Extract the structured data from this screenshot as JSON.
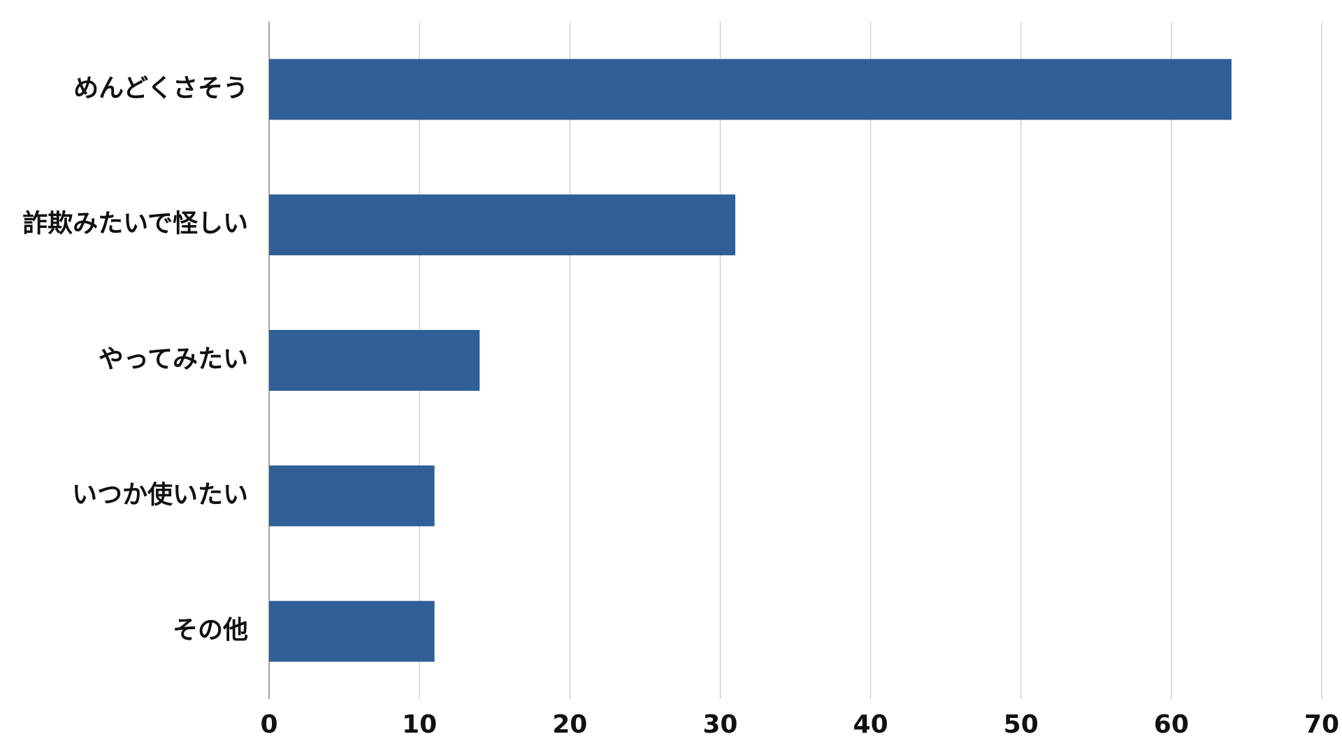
{
  "chart_data": {
    "type": "hbar",
    "categories": [
      "めんどくさそう",
      "詐欺みたいで怪しい",
      "やってみたい",
      "いつか使いたい",
      "その他"
    ],
    "values": [
      64,
      31,
      14,
      11,
      11
    ],
    "color": "#2f5f96",
    "xlim": [
      0,
      70
    ],
    "xticks": [
      0,
      10,
      20,
      30,
      40,
      50,
      60,
      70
    ],
    "grid": true
  }
}
